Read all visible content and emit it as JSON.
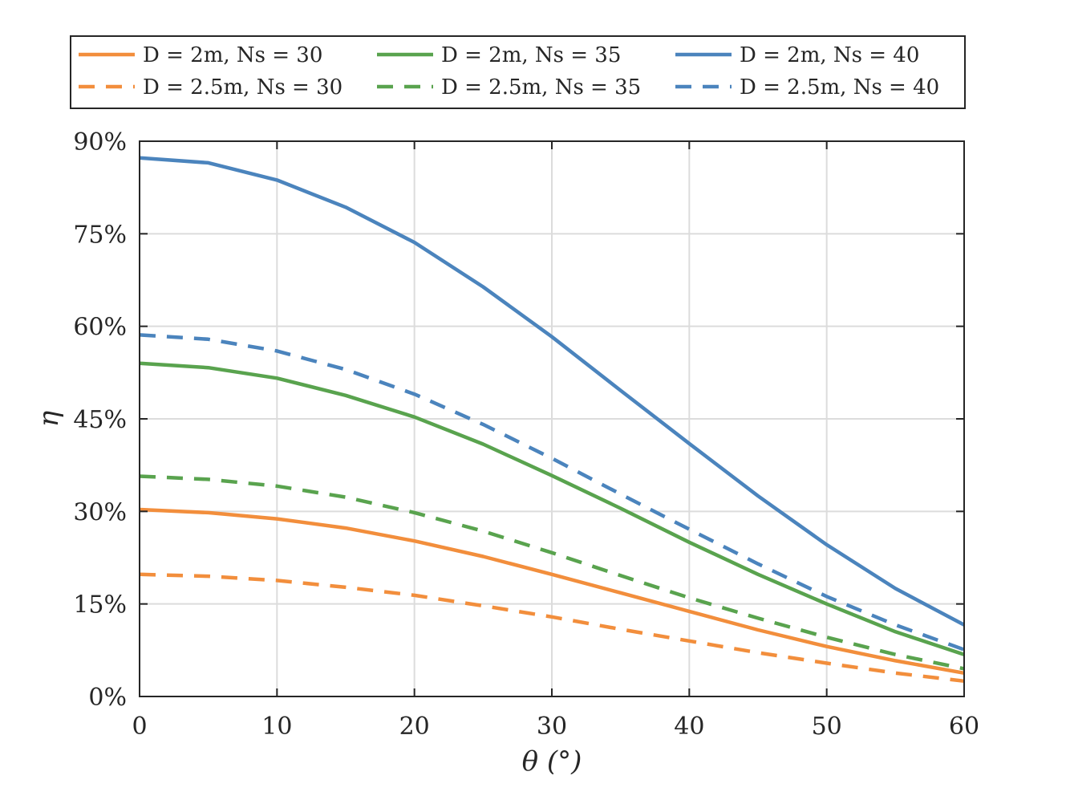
{
  "chart_data": {
    "type": "line",
    "xlabel": "θ (°)",
    "ylabel": "η",
    "xlim": [
      0,
      60
    ],
    "ylim": [
      0,
      90
    ],
    "xticks": [
      0,
      10,
      20,
      30,
      40,
      50,
      60
    ],
    "yticks": [
      0,
      15,
      30,
      45,
      60,
      75,
      90
    ],
    "ytick_labels": [
      "0%",
      "15%",
      "30%",
      "45%",
      "60%",
      "75%",
      "90%"
    ],
    "grid": true,
    "legend_position": "top",
    "x": [
      0,
      5,
      10,
      15,
      20,
      25,
      30,
      35,
      40,
      45,
      50,
      55,
      60
    ],
    "series": [
      {
        "name": "D = 2m, Ns = 30",
        "color": "#f28e3c",
        "dash": "solid",
        "values": [
          30.3,
          29.8,
          28.8,
          27.3,
          25.2,
          22.7,
          19.8,
          16.8,
          13.8,
          10.8,
          8.1,
          5.8,
          3.8
        ]
      },
      {
        "name": "D = 2m, Ns = 35",
        "color": "#59a34e",
        "dash": "solid",
        "values": [
          54.0,
          53.3,
          51.6,
          48.8,
          45.3,
          40.9,
          35.8,
          30.5,
          25.0,
          19.8,
          15.0,
          10.5,
          6.8
        ]
      },
      {
        "name": "D = 2m, Ns = 40",
        "color": "#4b84bd",
        "dash": "solid",
        "values": [
          87.3,
          86.5,
          83.7,
          79.3,
          73.6,
          66.4,
          58.3,
          49.6,
          41.0,
          32.5,
          24.6,
          17.5,
          11.6
        ]
      },
      {
        "name": "D = 2.5m, Ns = 30",
        "color": "#f28e3c",
        "dash": "dashed",
        "values": [
          19.8,
          19.5,
          18.8,
          17.7,
          16.4,
          14.7,
          12.9,
          10.9,
          9.0,
          7.1,
          5.4,
          3.8,
          2.5
        ]
      },
      {
        "name": "D = 2.5m, Ns = 35",
        "color": "#59a34e",
        "dash": "dashed",
        "values": [
          35.7,
          35.2,
          34.1,
          32.3,
          29.8,
          26.8,
          23.3,
          19.6,
          16.0,
          12.7,
          9.6,
          6.8,
          4.5
        ]
      },
      {
        "name": "D = 2.5m, Ns = 40",
        "color": "#4b84bd",
        "dash": "dashed",
        "values": [
          58.6,
          57.9,
          56.0,
          53.0,
          49.0,
          44.1,
          38.6,
          32.8,
          27.1,
          21.5,
          16.2,
          11.6,
          7.6
        ]
      }
    ]
  }
}
